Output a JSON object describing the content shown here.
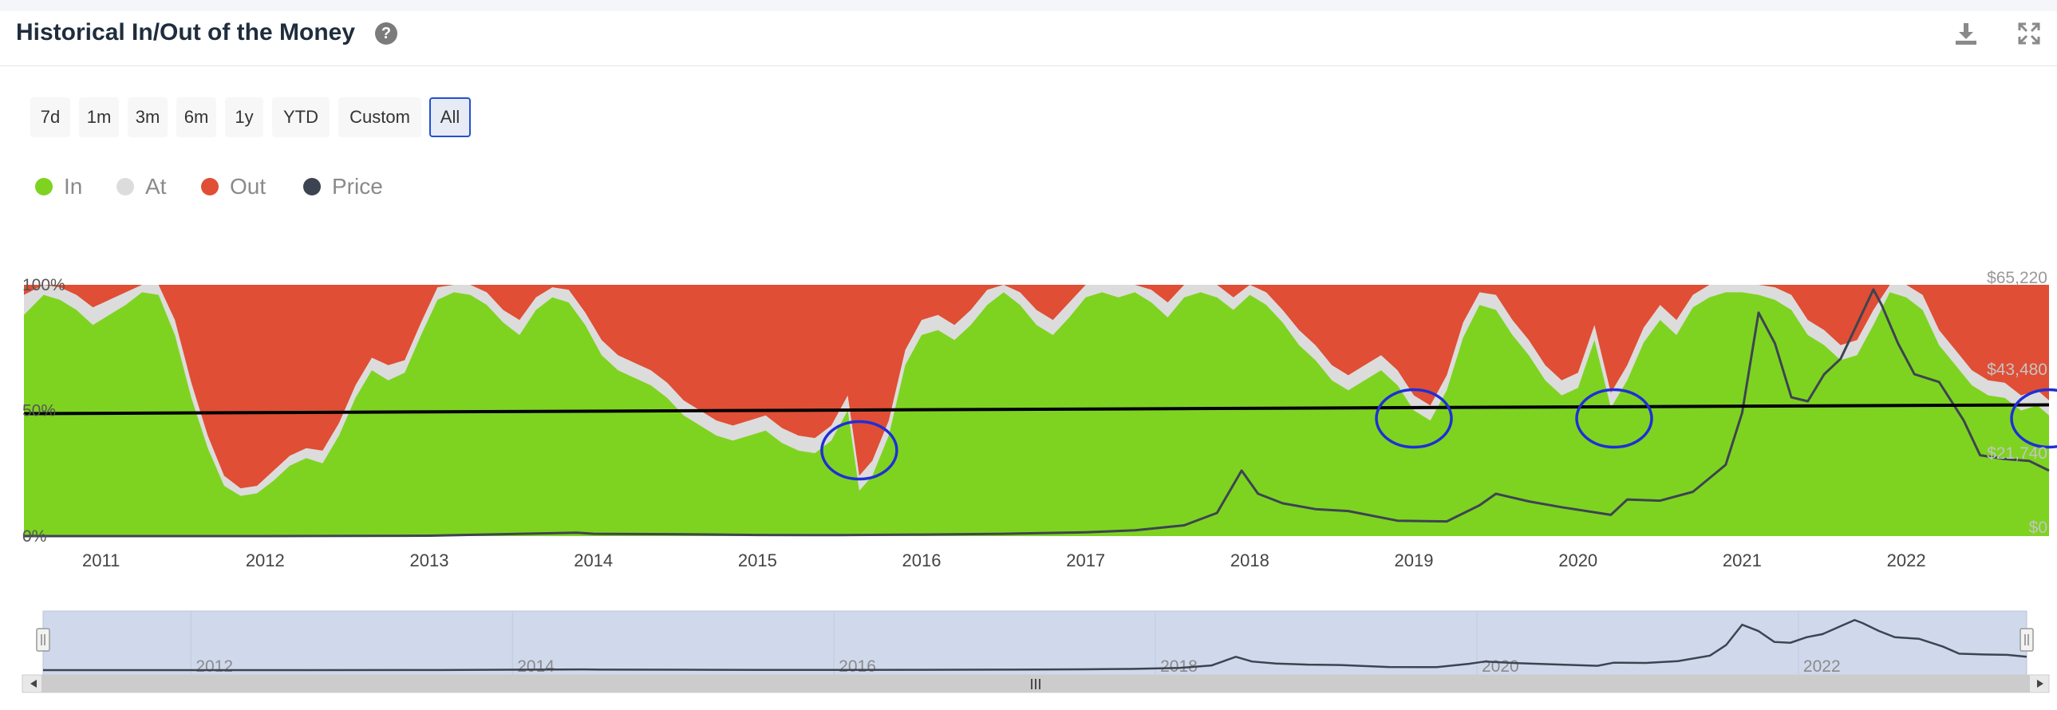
{
  "header": {
    "title": "Historical In/Out of the Money",
    "help_symbol": "?"
  },
  "range_selector": {
    "buttons": [
      "7d",
      "1m",
      "3m",
      "6m",
      "1y",
      "YTD",
      "Custom",
      "All"
    ],
    "selected": "All"
  },
  "legend": [
    {
      "label": "In",
      "color": "#7ed321"
    },
    {
      "label": "At",
      "color": "#dcdcdc"
    },
    {
      "label": "Out",
      "color": "#e04e35"
    },
    {
      "label": "Price",
      "color": "#3d4451"
    }
  ],
  "chart_data": {
    "type": "area",
    "stacked": true,
    "x_ticks": [
      "2011",
      "2012",
      "2013",
      "2014",
      "2015",
      "2016",
      "2017",
      "2018",
      "2019",
      "2020",
      "2021",
      "2022"
    ],
    "left_ticks": [
      "0%",
      "50%",
      "100%"
    ],
    "right_ticks": [
      "$0",
      "$21,740",
      "$43,480",
      "$65,220"
    ],
    "xlim": [
      2010.53,
      2022.87
    ],
    "ylim_left": [
      0,
      100
    ],
    "ylim_right": [
      0,
      65220
    ],
    "series": [
      {
        "name": "In",
        "color": "#7ed321",
        "x": [
          2010.53,
          2010.65,
          2010.75,
          2010.85,
          2010.95,
          2011.05,
          2011.15,
          2011.25,
          2011.35,
          2011.45,
          2011.55,
          2011.65,
          2011.75,
          2011.85,
          2011.95,
          2012.05,
          2012.15,
          2012.25,
          2012.35,
          2012.45,
          2012.55,
          2012.65,
          2012.75,
          2012.85,
          2012.95,
          2013.05,
          2013.15,
          2013.25,
          2013.35,
          2013.45,
          2013.55,
          2013.65,
          2013.75,
          2013.85,
          2013.95,
          2014.05,
          2014.15,
          2014.25,
          2014.35,
          2014.45,
          2014.55,
          2014.65,
          2014.75,
          2014.85,
          2014.95,
          2015.05,
          2015.15,
          2015.25,
          2015.35,
          2015.45,
          2015.55,
          2015.62,
          2015.7,
          2015.8,
          2015.9,
          2016.0,
          2016.1,
          2016.2,
          2016.3,
          2016.4,
          2016.5,
          2016.6,
          2016.7,
          2016.8,
          2016.9,
          2017.0,
          2017.1,
          2017.2,
          2017.3,
          2017.4,
          2017.5,
          2017.6,
          2017.7,
          2017.8,
          2017.9,
          2018.0,
          2018.1,
          2018.2,
          2018.3,
          2018.4,
          2018.5,
          2018.6,
          2018.7,
          2018.8,
          2018.9,
          2019.0,
          2019.1,
          2019.2,
          2019.3,
          2019.4,
          2019.5,
          2019.6,
          2019.7,
          2019.8,
          2019.9,
          2020.0,
          2020.1,
          2020.2,
          2020.3,
          2020.4,
          2020.5,
          2020.6,
          2020.7,
          2020.8,
          2020.9,
          2021.0,
          2021.1,
          2021.2,
          2021.3,
          2021.4,
          2021.5,
          2021.6,
          2021.7,
          2021.8,
          2021.9,
          2022.0,
          2022.1,
          2022.2,
          2022.3,
          2022.4,
          2022.5,
          2022.6,
          2022.7,
          2022.8,
          2022.87
        ],
        "values": [
          88,
          96,
          94,
          90,
          84,
          88,
          92,
          97,
          96,
          80,
          55,
          35,
          20,
          16,
          17,
          22,
          28,
          31,
          29,
          40,
          55,
          66,
          62,
          65,
          80,
          94,
          97,
          96,
          92,
          85,
          80,
          90,
          95,
          93,
          84,
          72,
          66,
          63,
          60,
          55,
          48,
          44,
          40,
          38,
          40,
          42,
          37,
          34,
          33,
          38,
          50,
          18,
          24,
          40,
          68,
          80,
          82,
          78,
          84,
          92,
          97,
          92,
          84,
          80,
          87,
          95,
          97,
          95,
          97,
          93,
          87,
          95,
          97,
          95,
          90,
          96,
          92,
          85,
          76,
          70,
          62,
          58,
          62,
          66,
          60,
          50,
          46,
          58,
          79,
          92,
          90,
          80,
          72,
          62,
          56,
          59,
          78,
          51,
          62,
          77,
          86,
          80,
          91,
          95,
          97,
          97,
          96,
          94,
          90,
          80,
          76,
          70,
          72,
          84,
          97,
          95,
          90,
          76,
          68,
          60,
          56,
          55,
          50,
          52,
          48
        ]
      },
      {
        "name": "At",
        "color": "#dcdcdc",
        "x": [
          2010.53,
          2010.65,
          2010.75,
          2010.85,
          2010.95,
          2011.05,
          2011.15,
          2011.25,
          2011.35,
          2011.45,
          2011.55,
          2011.65,
          2011.75,
          2011.85,
          2011.95,
          2012.05,
          2012.15,
          2012.25,
          2012.35,
          2012.45,
          2012.55,
          2012.65,
          2012.75,
          2012.85,
          2012.95,
          2013.05,
          2013.15,
          2013.25,
          2013.35,
          2013.45,
          2013.55,
          2013.65,
          2013.75,
          2013.85,
          2013.95,
          2014.05,
          2014.15,
          2014.25,
          2014.35,
          2014.45,
          2014.55,
          2014.65,
          2014.75,
          2014.85,
          2014.95,
          2015.05,
          2015.15,
          2015.25,
          2015.35,
          2015.45,
          2015.55,
          2015.62,
          2015.7,
          2015.8,
          2015.9,
          2016.0,
          2016.1,
          2016.2,
          2016.3,
          2016.4,
          2016.5,
          2016.6,
          2016.7,
          2016.8,
          2016.9,
          2017.0,
          2017.1,
          2017.2,
          2017.3,
          2017.4,
          2017.5,
          2017.6,
          2017.7,
          2017.8,
          2017.9,
          2018.0,
          2018.1,
          2018.2,
          2018.3,
          2018.4,
          2018.5,
          2018.6,
          2018.7,
          2018.8,
          2018.9,
          2019.0,
          2019.1,
          2019.2,
          2019.3,
          2019.4,
          2019.5,
          2019.6,
          2019.7,
          2019.8,
          2019.9,
          2020.0,
          2020.1,
          2020.2,
          2020.3,
          2020.4,
          2020.5,
          2020.6,
          2020.7,
          2020.8,
          2020.9,
          2021.0,
          2021.1,
          2021.2,
          2021.3,
          2021.4,
          2021.5,
          2021.6,
          2021.7,
          2021.8,
          2021.9,
          2022.0,
          2022.1,
          2022.2,
          2022.3,
          2022.4,
          2022.5,
          2022.6,
          2022.7,
          2022.8,
          2022.87
        ],
        "values": [
          8,
          4,
          5,
          6,
          7,
          6,
          5,
          3,
          4,
          6,
          6,
          5,
          4,
          3,
          3,
          4,
          4,
          4,
          5,
          5,
          5,
          5,
          6,
          5,
          5,
          5,
          3,
          4,
          5,
          5,
          6,
          5,
          4,
          5,
          5,
          6,
          6,
          6,
          6,
          6,
          6,
          6,
          6,
          6,
          6,
          6,
          6,
          6,
          6,
          6,
          6,
          6,
          6,
          6,
          6,
          6,
          6,
          6,
          6,
          6,
          3,
          5,
          6,
          6,
          6,
          5,
          3,
          5,
          3,
          5,
          6,
          5,
          3,
          5,
          5,
          4,
          5,
          5,
          6,
          6,
          6,
          6,
          6,
          6,
          6,
          6,
          6,
          6,
          6,
          5,
          6,
          6,
          6,
          6,
          6,
          6,
          6,
          6,
          6,
          6,
          6,
          6,
          5,
          5,
          3,
          3,
          4,
          5,
          6,
          6,
          6,
          6,
          6,
          6,
          3,
          5,
          6,
          6,
          6,
          6,
          6,
          6,
          6,
          6,
          6
        ]
      },
      {
        "name": "Out",
        "color": "#e04e35",
        "values_note": ""
      },
      {
        "name": "Price",
        "color": "#3d4451",
        "x": [
          2010.53,
          2011.0,
          2011.5,
          2012.0,
          2013.0,
          2013.9,
          2014.0,
          2014.5,
          2015.0,
          2015.5,
          2016.0,
          2016.5,
          2017.0,
          2017.3,
          2017.6,
          2017.8,
          2017.95,
          2018.05,
          2018.2,
          2018.4,
          2018.6,
          2018.9,
          2019.2,
          2019.4,
          2019.5,
          2019.7,
          2019.9,
          2020.2,
          2020.3,
          2020.5,
          2020.7,
          2020.9,
          2021.0,
          2021.1,
          2021.2,
          2021.3,
          2021.4,
          2021.5,
          2021.6,
          2021.7,
          2021.8,
          2021.85,
          2021.95,
          2022.05,
          2022.2,
          2022.35,
          2022.45,
          2022.6,
          2022.75,
          2022.87
        ],
        "values": [
          0,
          0,
          0,
          0,
          100,
          900,
          600,
          500,
          300,
          250,
          400,
          600,
          1000,
          1500,
          2800,
          6000,
          17000,
          11000,
          8500,
          7000,
          6500,
          4000,
          3800,
          8000,
          11000,
          9000,
          7500,
          5500,
          9500,
          9200,
          11500,
          18500,
          32000,
          58000,
          50000,
          36000,
          35000,
          42000,
          46000,
          55000,
          64000,
          60000,
          50000,
          42000,
          40000,
          30000,
          21000,
          20000,
          19500,
          17000
        ]
      }
    ],
    "reference_line_percent": 50,
    "highlight_circles": [
      2015.62,
      2019.0,
      2020.22,
      2022.87
    ]
  },
  "navigator": {
    "ticks": [
      "2012",
      "2014",
      "2016",
      "2018",
      "2020",
      "2022"
    ],
    "tick_years": [
      2012,
      2014,
      2016,
      2018,
      2020,
      2022
    ],
    "scrollbar_grip": "III"
  }
}
